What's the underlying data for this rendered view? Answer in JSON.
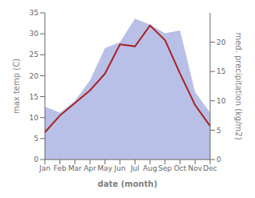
{
  "chart_data": {
    "type": "line",
    "xlabel": "date (month)",
    "ylabel": "max temp (C)",
    "y2label": "med. precipitation (kg/m2)",
    "categories": [
      "Jan",
      "Feb",
      "Mar",
      "Apr",
      "May",
      "Jun",
      "Jul",
      "Aug",
      "Sep",
      "Oct",
      "Nov",
      "Dec"
    ],
    "series": [
      {
        "type": "area",
        "axis": "y2",
        "color": "#b8c0e8",
        "values": [
          9.0,
          8.0,
          10.0,
          13.5,
          19.0,
          20.0,
          24.0,
          23.0,
          21.5,
          22.0,
          11.5,
          8.0
        ]
      },
      {
        "type": "line",
        "color": "#aa2222",
        "values": [
          6.5,
          10.5,
          13.5,
          16.5,
          20.5,
          27.5,
          27.0,
          32.0,
          28.5,
          20.5,
          13.0,
          8.0
        ]
      }
    ],
    "ylim": [
      0,
      35
    ],
    "yticks": [
      0,
      5,
      10,
      15,
      20,
      25,
      30,
      35
    ],
    "y2lim": [
      0,
      25
    ],
    "y2ticks": [
      0,
      5,
      10,
      15,
      20
    ],
    "grid": false
  }
}
